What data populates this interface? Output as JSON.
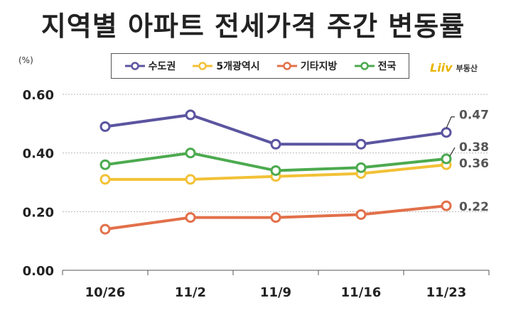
{
  "title": "지역별 아파트 전세가격 주간 변동률",
  "unit_label": "(%)",
  "logo": {
    "mark": "Liiv",
    "text": "부동산"
  },
  "chart_data": {
    "type": "line",
    "categories": [
      "10/26",
      "11/2",
      "11/9",
      "11/16",
      "11/23"
    ],
    "ylim": [
      0,
      0.6
    ],
    "yticks": [
      "0.00",
      "0.20",
      "0.40",
      "0.60"
    ],
    "grid": true,
    "legend_position": "top",
    "series": [
      {
        "name": "수도권",
        "color": "#5b55a0",
        "values": [
          0.49,
          0.53,
          0.43,
          0.43,
          0.47
        ],
        "end_label": "0.47"
      },
      {
        "name": "5개광역시",
        "color": "#f2c136",
        "values": [
          0.31,
          0.31,
          0.32,
          0.33,
          0.36
        ],
        "end_label": "0.36"
      },
      {
        "name": "기타지방",
        "color": "#e2704a",
        "values": [
          0.14,
          0.18,
          0.18,
          0.19,
          0.22
        ],
        "end_label": "0.22"
      },
      {
        "name": "전국",
        "color": "#4caa4f",
        "values": [
          0.36,
          0.4,
          0.34,
          0.35,
          0.38
        ],
        "end_label": "0.38"
      }
    ]
  }
}
